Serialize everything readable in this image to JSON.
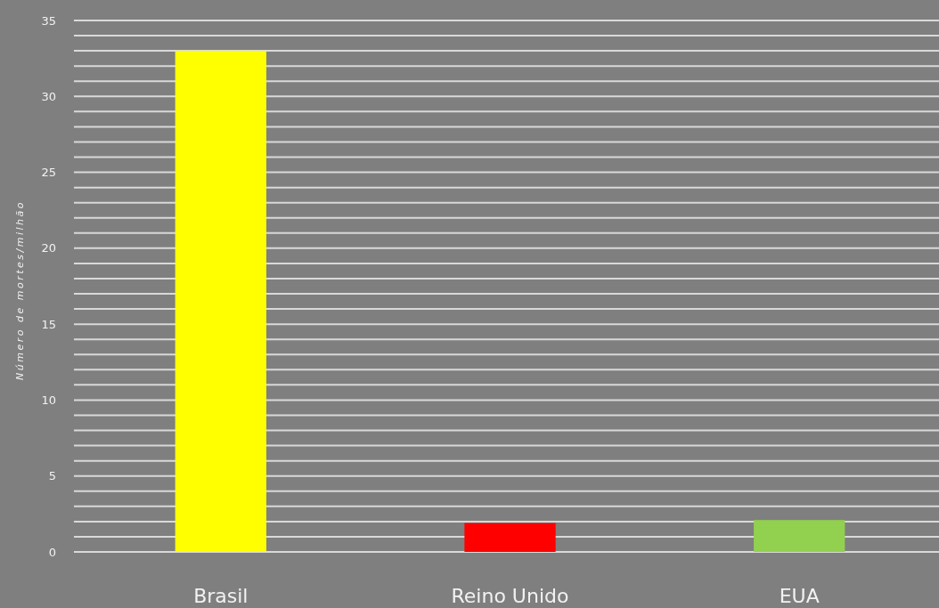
{
  "chart_data": {
    "type": "bar",
    "ylabel": "Número de mortes/milhão",
    "categories": [
      "Brasil",
      "Reino Unido",
      "EUA"
    ],
    "values": [
      33,
      1.9,
      2.1
    ],
    "colors": [
      "#ffff00",
      "#ff0000",
      "#92d050"
    ],
    "ylim": [
      0,
      35
    ],
    "yticks": [
      0,
      {
        "value": 1,
        "label": null
      },
      {
        "value": 2,
        "label": null
      },
      {
        "value": 3,
        "label": null
      },
      {
        "value": 4,
        "label": null
      },
      5,
      {
        "value": 6,
        "label": null
      },
      {
        "value": 7,
        "label": null
      },
      {
        "value": 8,
        "label": null
      },
      {
        "value": 9,
        "label": null
      },
      10,
      {
        "value": 11,
        "label": null
      },
      {
        "value": 12,
        "label": null
      },
      {
        "value": 13,
        "label": null
      },
      {
        "value": 14,
        "label": null
      },
      15,
      {
        "value": 16,
        "label": null
      },
      {
        "value": 17,
        "label": null
      },
      {
        "value": 18,
        "label": null
      },
      {
        "value": 19,
        "label": null
      },
      20,
      {
        "value": 21,
        "label": null
      },
      {
        "value": 22,
        "label": null
      },
      {
        "value": 23,
        "label": null
      },
      {
        "value": 24,
        "label": null
      },
      25,
      {
        "value": 26,
        "label": null
      },
      {
        "value": 27,
        "label": null
      },
      {
        "value": 28,
        "label": null
      },
      {
        "value": 29,
        "label": null
      },
      30,
      {
        "value": 31,
        "label": null
      },
      {
        "value": 32,
        "label": null
      },
      {
        "value": 33,
        "label": null
      },
      {
        "value": 34,
        "label": null
      },
      35
    ],
    "grid": "y"
  }
}
